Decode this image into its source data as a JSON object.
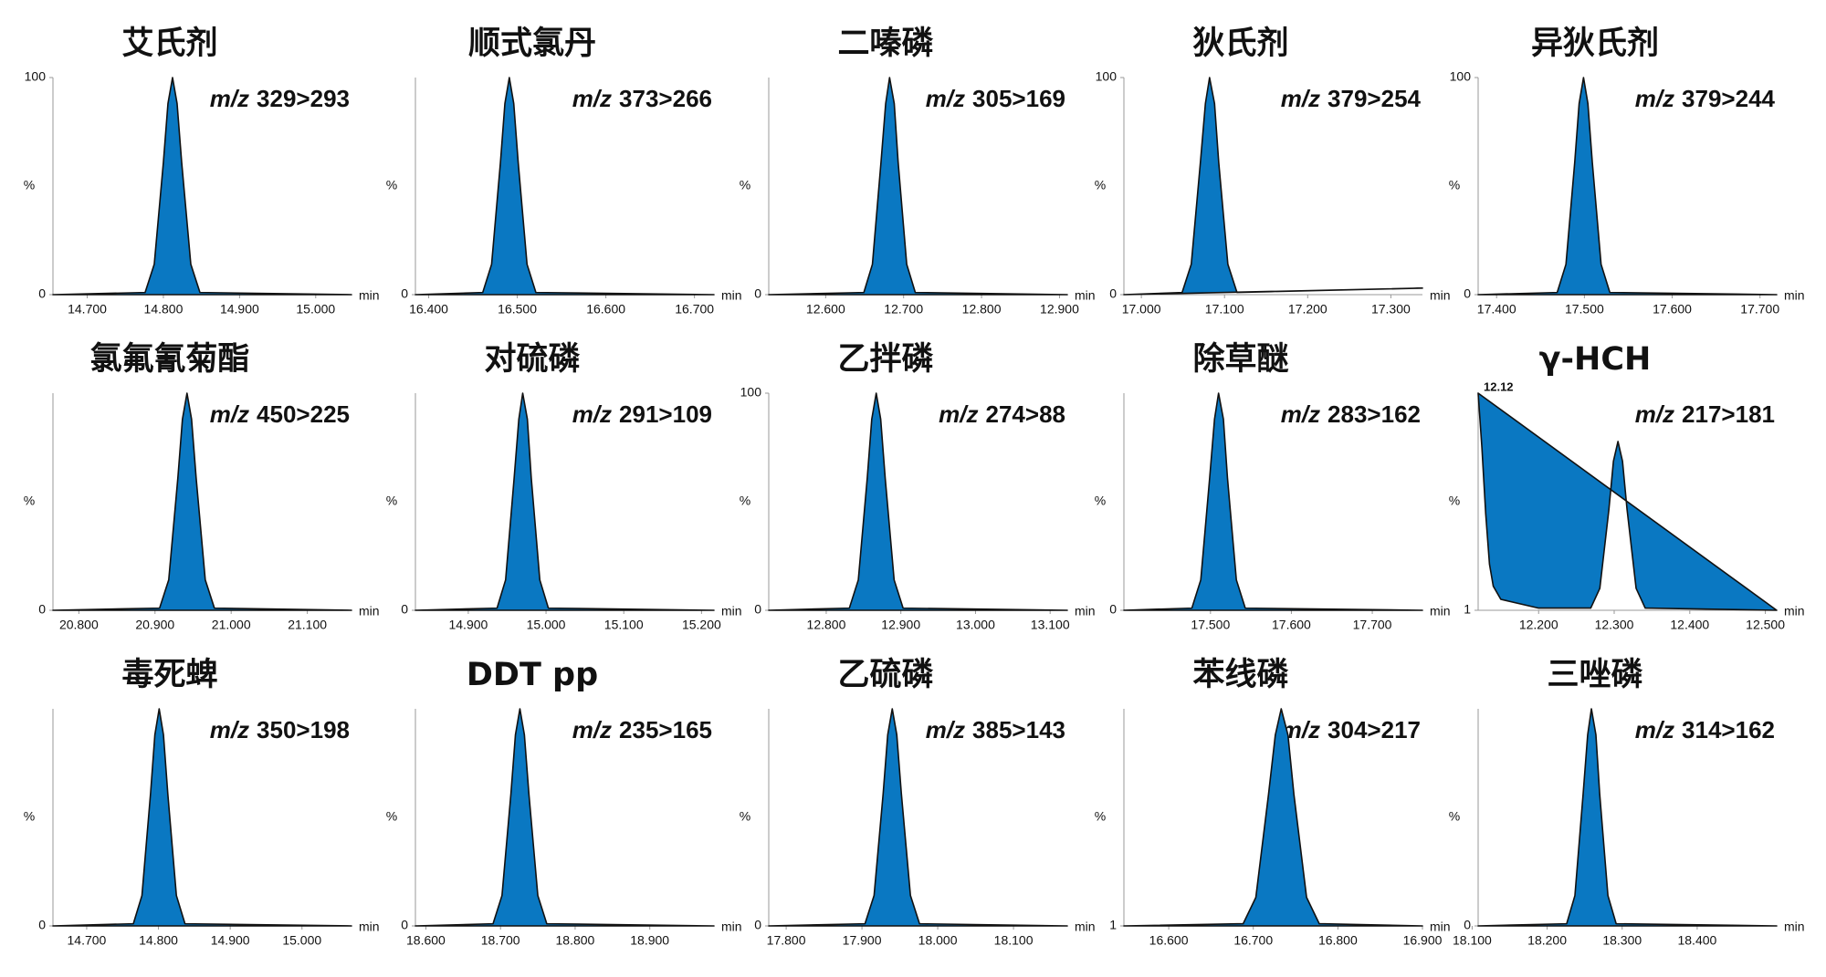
{
  "chart_data": [
    {
      "type": "line",
      "title": "艾氏剂",
      "mz_label": "m/z",
      "transition": "329>293",
      "xlabel": "min",
      "ylabel": "%",
      "xlim": [
        14.655,
        15.047
      ],
      "xticks": [
        {
          "value": 14.7,
          "label": "14.700"
        },
        {
          "value": 14.8,
          "label": "14.800"
        },
        {
          "value": 14.9,
          "label": "14.900"
        },
        {
          "value": 15.0,
          "label": "15.000"
        }
      ],
      "ylim": [
        0,
        100
      ],
      "yticks": [
        0,
        100
      ],
      "color": "#0a78c2",
      "x": [
        14.655,
        14.776,
        14.788,
        14.8,
        14.806,
        14.812,
        14.818,
        14.824,
        14.836,
        14.848,
        15.047
      ],
      "values": [
        0,
        1,
        14,
        61,
        88,
        100,
        88,
        61,
        14,
        1,
        0
      ]
    },
    {
      "type": "line",
      "title": "顺式氯丹",
      "mz_label": "m/z",
      "transition": "373>266",
      "xlabel": "min",
      "ylabel": "%",
      "xlim": [
        16.385,
        16.722
      ],
      "xticks": [
        {
          "value": 16.4,
          "label": "16.400"
        },
        {
          "value": 16.5,
          "label": "16.500"
        },
        {
          "value": 16.6,
          "label": "16.600"
        },
        {
          "value": 16.7,
          "label": "16.700"
        }
      ],
      "ylim": [
        0,
        100
      ],
      "yticks": [
        0
      ],
      "color": "#0a78c2",
      "x": [
        16.385,
        16.461,
        16.471,
        16.481,
        16.486,
        16.491,
        16.496,
        16.501,
        16.511,
        16.521,
        16.722
      ],
      "values": [
        0,
        1,
        14,
        61,
        88,
        100,
        88,
        61,
        14,
        1,
        0
      ]
    },
    {
      "type": "line",
      "title": "二嗪磷",
      "mz_label": "m/z",
      "transition": "305>169",
      "xlabel": "min",
      "ylabel": "%",
      "xlim": [
        12.527,
        12.91
      ],
      "xticks": [
        {
          "value": 12.6,
          "label": "12.600"
        },
        {
          "value": 12.7,
          "label": "12.700"
        },
        {
          "value": 12.8,
          "label": "12.800"
        },
        {
          "value": 12.9,
          "label": "12.900"
        }
      ],
      "ylim": [
        0,
        100
      ],
      "yticks": [
        0
      ],
      "color": "#0a78c2",
      "x": [
        12.527,
        12.649,
        12.66,
        12.671,
        12.677,
        12.682,
        12.688,
        12.693,
        12.704,
        12.715,
        12.91
      ],
      "values": [
        0,
        1,
        14,
        61,
        88,
        100,
        88,
        61,
        14,
        1,
        0
      ]
    },
    {
      "type": "line",
      "title": "狄氏剂",
      "mz_label": "m/z",
      "transition": "379>254",
      "xlabel": "min",
      "ylabel": "%",
      "xlim": [
        16.979,
        17.338
      ],
      "xticks": [
        {
          "value": 17.0,
          "label": "17.000"
        },
        {
          "value": 17.1,
          "label": "17.100"
        },
        {
          "value": 17.2,
          "label": "17.200"
        },
        {
          "value": 17.3,
          "label": "17.300"
        }
      ],
      "ylim": [
        0,
        100
      ],
      "yticks": [
        0,
        100
      ],
      "color": "#0a78c2",
      "x": [
        16.979,
        17.049,
        17.06,
        17.071,
        17.077,
        17.082,
        17.088,
        17.093,
        17.104,
        17.115,
        17.338
      ],
      "values": [
        0,
        1,
        14,
        61,
        88,
        100,
        88,
        61,
        14,
        1,
        3
      ]
    },
    {
      "type": "line",
      "title": "异狄氏剂",
      "mz_label": "m/z",
      "transition": "379>244",
      "xlabel": "min",
      "ylabel": "%",
      "xlim": [
        17.379,
        17.719
      ],
      "xticks": [
        {
          "value": 17.4,
          "label": "17.400"
        },
        {
          "value": 17.5,
          "label": "17.500"
        },
        {
          "value": 17.6,
          "label": "17.600"
        },
        {
          "value": 17.7,
          "label": "17.700"
        }
      ],
      "ylim": [
        0,
        100
      ],
      "yticks": [
        0,
        100
      ],
      "color": "#0a78c2",
      "x": [
        17.379,
        17.469,
        17.479,
        17.489,
        17.494,
        17.499,
        17.504,
        17.509,
        17.519,
        17.529,
        17.719
      ],
      "values": [
        0,
        1,
        14,
        61,
        88,
        100,
        88,
        61,
        14,
        1,
        0
      ]
    },
    {
      "type": "line",
      "title": "氯氟氰菊酯",
      "mz_label": "m/z",
      "transition": "450>225",
      "xlabel": "min",
      "ylabel": "%",
      "xlim": [
        20.766,
        21.158
      ],
      "xticks": [
        {
          "value": 20.8,
          "label": "20.800"
        },
        {
          "value": 20.9,
          "label": "20.900"
        },
        {
          "value": 21.0,
          "label": "21.000"
        },
        {
          "value": 21.1,
          "label": "21.100"
        }
      ],
      "ylim": [
        0,
        100
      ],
      "yticks": [
        0
      ],
      "color": "#0a78c2",
      "x": [
        20.766,
        20.906,
        20.918,
        20.93,
        20.936,
        20.942,
        20.948,
        20.954,
        20.966,
        20.978,
        21.158
      ],
      "values": [
        0,
        1,
        14,
        61,
        88,
        100,
        88,
        61,
        14,
        1,
        0
      ]
    },
    {
      "type": "line",
      "title": "对硫磷",
      "mz_label": "m/z",
      "transition": "291>109",
      "xlabel": "min",
      "ylabel": "%",
      "xlim": [
        14.832,
        15.216
      ],
      "xticks": [
        {
          "value": 14.9,
          "label": "14.900"
        },
        {
          "value": 15.0,
          "label": "15.000"
        },
        {
          "value": 15.1,
          "label": "15.100"
        },
        {
          "value": 15.2,
          "label": "15.200"
        }
      ],
      "ylim": [
        0,
        100
      ],
      "yticks": [
        0
      ],
      "color": "#0a78c2",
      "x": [
        14.832,
        14.937,
        14.948,
        14.959,
        14.965,
        14.97,
        14.976,
        14.981,
        14.992,
        15.003,
        15.216
      ],
      "values": [
        0,
        1,
        14,
        61,
        88,
        100,
        88,
        61,
        14,
        1,
        0
      ]
    },
    {
      "type": "line",
      "title": "乙拌磷",
      "mz_label": "m/z",
      "transition": "274>88",
      "xlabel": "min",
      "ylabel": "%",
      "xlim": [
        12.723,
        13.123
      ],
      "xticks": [
        {
          "value": 12.8,
          "label": "12.800"
        },
        {
          "value": 12.9,
          "label": "12.900"
        },
        {
          "value": 13.0,
          "label": "13.000"
        },
        {
          "value": 13.1,
          "label": "13.100"
        }
      ],
      "ylim": [
        0,
        100
      ],
      "yticks": [
        0,
        100
      ],
      "color": "#0a78c2",
      "x": [
        12.723,
        12.831,
        12.843,
        12.855,
        12.861,
        12.867,
        12.873,
        12.879,
        12.891,
        12.903,
        13.123
      ],
      "values": [
        0,
        1,
        14,
        61,
        88,
        100,
        88,
        61,
        14,
        1,
        0
      ]
    },
    {
      "type": "line",
      "title": "除草醚",
      "mz_label": "m/z",
      "transition": "283>162",
      "xlabel": "min",
      "ylabel": "%",
      "xlim": [
        17.393,
        17.762
      ],
      "xticks": [
        {
          "value": 17.5,
          "label": "17.500"
        },
        {
          "value": 17.6,
          "label": "17.600"
        },
        {
          "value": 17.7,
          "label": "17.700"
        }
      ],
      "ylim": [
        0,
        100
      ],
      "yticks": [
        0
      ],
      "color": "#0a78c2",
      "x": [
        17.393,
        17.477,
        17.488,
        17.499,
        17.505,
        17.51,
        17.516,
        17.521,
        17.532,
        17.543,
        17.762
      ],
      "values": [
        0,
        1,
        14,
        61,
        88,
        100,
        88,
        61,
        14,
        1,
        0
      ]
    },
    {
      "type": "line",
      "title": "γ-HCH",
      "mz_label": "m/z",
      "transition": "217>181",
      "peak_label": "12.12",
      "xlabel": "min",
      "ylabel": "%",
      "xlim": [
        12.12,
        12.515
      ],
      "xticks": [
        {
          "value": 12.2,
          "label": "12.200"
        },
        {
          "value": 12.3,
          "label": "12.300"
        },
        {
          "value": 12.4,
          "label": "12.400"
        },
        {
          "value": 12.5,
          "label": "12.500"
        }
      ],
      "ylim": [
        1,
        100
      ],
      "yticks": [
        1
      ],
      "color": "#0a78c2",
      "x": [
        12.12,
        12.125,
        12.13,
        12.135,
        12.14,
        12.15,
        12.2,
        12.269,
        12.281,
        12.293,
        12.299,
        12.305,
        12.311,
        12.317,
        12.329,
        12.341,
        12.515
      ],
      "values": [
        100,
        75,
        45,
        22,
        12,
        6,
        2,
        2,
        11,
        47,
        69,
        78,
        69,
        47,
        11,
        2,
        1
      ]
    },
    {
      "type": "line",
      "title": "毒死蜱",
      "mz_label": "m/z",
      "transition": "350>198",
      "xlabel": "min",
      "ylabel": "%",
      "xlim": [
        14.653,
        15.069
      ],
      "xticks": [
        {
          "value": 14.7,
          "label": "14.700"
        },
        {
          "value": 14.8,
          "label": "14.800"
        },
        {
          "value": 14.9,
          "label": "14.900"
        },
        {
          "value": 15.0,
          "label": "15.000"
        }
      ],
      "ylim": [
        0,
        100
      ],
      "yticks": [
        0
      ],
      "color": "#0a78c2",
      "x": [
        14.653,
        14.765,
        14.777,
        14.789,
        14.795,
        14.801,
        14.807,
        14.813,
        14.825,
        14.837,
        15.069
      ],
      "values": [
        0,
        1,
        14,
        61,
        88,
        100,
        88,
        61,
        14,
        1,
        0
      ]
    },
    {
      "type": "line",
      "title": "DDT pp",
      "mz_label": "m/z",
      "transition": "235>165",
      "xlabel": "min",
      "ylabel": "%",
      "xlim": [
        18.586,
        18.986
      ],
      "xticks": [
        {
          "value": 18.6,
          "label": "18.600"
        },
        {
          "value": 18.7,
          "label": "18.700"
        },
        {
          "value": 18.8,
          "label": "18.800"
        },
        {
          "value": 18.9,
          "label": "18.900"
        }
      ],
      "ylim": [
        0,
        100
      ],
      "yticks": [
        0
      ],
      "color": "#0a78c2",
      "x": [
        18.586,
        18.69,
        18.702,
        18.714,
        18.72,
        18.726,
        18.732,
        18.738,
        18.75,
        18.762,
        18.986
      ],
      "values": [
        0,
        1,
        14,
        61,
        88,
        100,
        88,
        61,
        14,
        1,
        0
      ]
    },
    {
      "type": "line",
      "title": "乙硫磷",
      "mz_label": "m/z",
      "transition": "385>143",
      "xlabel": "min",
      "ylabel": "%",
      "xlim": [
        17.777,
        18.171
      ],
      "xticks": [
        {
          "value": 17.8,
          "label": "17.800"
        },
        {
          "value": 17.9,
          "label": "17.900"
        },
        {
          "value": 18.0,
          "label": "18.000"
        },
        {
          "value": 18.1,
          "label": "18.100"
        }
      ],
      "ylim": [
        0,
        100
      ],
      "yticks": [
        0
      ],
      "color": "#0a78c2",
      "x": [
        17.777,
        17.904,
        17.916,
        17.928,
        17.934,
        17.94,
        17.946,
        17.952,
        17.964,
        17.976,
        18.171
      ],
      "values": [
        0,
        1,
        14,
        61,
        88,
        100,
        88,
        61,
        14,
        1,
        0
      ]
    },
    {
      "type": "line",
      "title": "苯线磷",
      "mz_label": "m/z",
      "transition": "304>217",
      "xlabel": "min",
      "ylabel": "%",
      "xlim": [
        16.547,
        16.9
      ],
      "xticks": [
        {
          "value": 16.6,
          "label": "16.600"
        },
        {
          "value": 16.7,
          "label": "16.700"
        },
        {
          "value": 16.8,
          "label": "16.800"
        },
        {
          "value": 16.9,
          "label": "16.900"
        }
      ],
      "ylim": [
        1,
        100
      ],
      "yticks": [
        1
      ],
      "color": "#0a78c2",
      "x": [
        16.547,
        16.688,
        16.703,
        16.718,
        16.726,
        16.733,
        16.741,
        16.748,
        16.763,
        16.778,
        16.9
      ],
      "values": [
        1,
        2,
        14,
        61,
        88,
        100,
        88,
        61,
        14,
        2,
        1
      ]
    },
    {
      "type": "line",
      "title": "三唑磷",
      "mz_label": "m/z",
      "transition": "314>162",
      "xlabel": "min",
      "ylabel": "%",
      "xlim": [
        18.108,
        18.506
      ],
      "xticks": [
        {
          "value": 18.1,
          "label": "18.100"
        },
        {
          "value": 18.2,
          "label": "18.200"
        },
        {
          "value": 18.3,
          "label": "18.300"
        },
        {
          "value": 18.4,
          "label": "18.400"
        }
      ],
      "ylim": [
        0,
        100
      ],
      "yticks": [
        0
      ],
      "color": "#0a78c2",
      "x": [
        18.108,
        18.226,
        18.237,
        18.248,
        18.254,
        18.259,
        18.265,
        18.27,
        18.281,
        18.292,
        18.506
      ],
      "values": [
        0,
        1,
        14,
        61,
        88,
        100,
        88,
        61,
        14,
        1,
        0
      ]
    }
  ]
}
